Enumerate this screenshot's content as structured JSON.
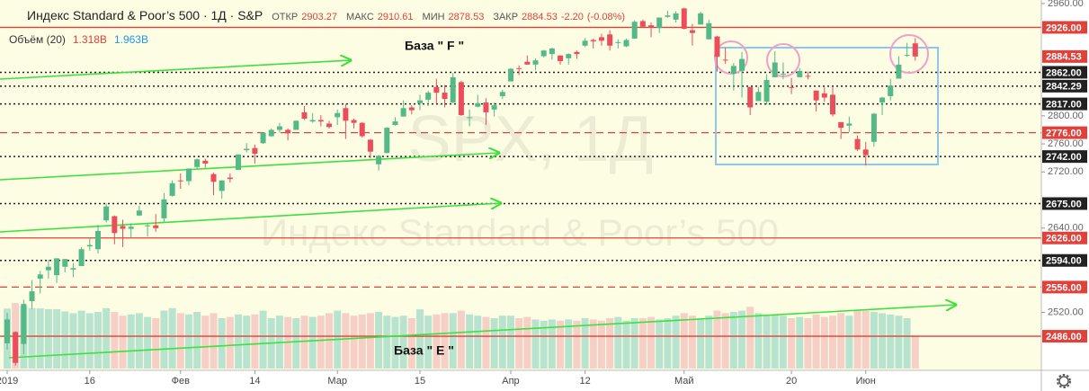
{
  "header": {
    "title": "Индекс Standard & Poor’s 500 · 1Д · S&P",
    "fields": [
      "ОТКР",
      "МАКС",
      "МИН",
      "ЗАКР"
    ],
    "change": {
      "value": -2.2,
      "label": "-2.20"
    },
    "change_pct": {
      "value": -0.08,
      "label": "(-0.08%)"
    }
  },
  "volume_legend": {
    "title": "Объём (20)",
    "values": [
      {
        "value": 1.318,
        "label": "1.318B"
      },
      {
        "value": 1.963,
        "label": "1.963B"
      }
    ]
  },
  "chart_data": {
    "type": "candlestick",
    "ylim": [
      2440,
      2965
    ],
    "yticks": [
      {
        "value": 2960,
        "label": "2960.00"
      },
      {
        "value": 2800,
        "label": "2800.00"
      },
      {
        "value": 2760,
        "label": "2760.00"
      },
      {
        "value": 2720,
        "label": "2720.00"
      },
      {
        "value": 2640,
        "label": "2640.00"
      },
      {
        "value": 2520,
        "label": "2520.00"
      }
    ],
    "xticks": [
      {
        "value": 0,
        "label": "2019"
      },
      {
        "value": 10,
        "label": "16"
      },
      {
        "value": 21,
        "label": "Фев"
      },
      {
        "value": 30,
        "label": "14"
      },
      {
        "value": 40,
        "label": "Мар"
      },
      {
        "value": 50,
        "label": "15"
      },
      {
        "value": 61,
        "label": "Апр"
      },
      {
        "value": 70,
        "label": "12"
      },
      {
        "value": 82,
        "label": "Май"
      },
      {
        "value": 95,
        "label": "20"
      },
      {
        "value": 104,
        "label": "Июн"
      }
    ],
    "grid": false,
    "up_color": "#53b987",
    "down_color": "#eb4d5c",
    "volume_up_color": "#7fcfc0",
    "volume_down_color": "#f0a9ae",
    "watermark": "SPX, 1Д",
    "watermark_subtitle": "Индекс Standard & Poor’s 500",
    "annotations": [
      "База \" F \"",
      "База \" E \""
    ],
    "levels": [
      {
        "value": 2926,
        "label": "2926.00",
        "style": "solid",
        "color": "#e0413a"
      },
      {
        "value": 2862,
        "label": "2862.00",
        "style": "dotted",
        "color": "#222222"
      },
      {
        "value": 2842.29,
        "label": "2842.29",
        "style": "dotted",
        "color": "#222222"
      },
      {
        "value": 2817,
        "label": "2817.00",
        "style": "dotted",
        "color": "#222222"
      },
      {
        "value": 2776,
        "label": "2776.00",
        "style": "dashed",
        "color": "#e0413a"
      },
      {
        "value": 2742,
        "label": "2742.00",
        "style": "dotted",
        "color": "#222222"
      },
      {
        "value": 2675,
        "label": "2675.00",
        "style": "dotted",
        "color": "#222222"
      },
      {
        "value": 2626,
        "label": "2626.00",
        "style": "solid",
        "color": "#e0413a"
      },
      {
        "value": 2594,
        "label": "2594.00",
        "style": "dotted",
        "color": "#222222"
      },
      {
        "value": 2556,
        "label": "2556.00",
        "style": "dashed",
        "color": "#e0413a"
      },
      {
        "value": 2486,
        "label": "2486.00",
        "style": "solid",
        "color": "#e0413a"
      }
    ],
    "last_price": {
      "value": 2884.53,
      "label": "2884.53",
      "color": "#e0413a"
    },
    "ohlc": [
      [
        2476,
        2519,
        2467,
        2510
      ],
      [
        2492,
        2493,
        2444,
        2448
      ],
      [
        2475,
        2538,
        2460,
        2532
      ],
      [
        2536,
        2566,
        2525,
        2550
      ],
      [
        2568,
        2579,
        2547,
        2574
      ],
      [
        2580,
        2595,
        2568,
        2585
      ],
      [
        2573,
        2597,
        2562,
        2597
      ],
      [
        2585,
        2596,
        2577,
        2596
      ],
      [
        2581,
        2590,
        2570,
        2583
      ],
      [
        2586,
        2613,
        2586,
        2610
      ],
      [
        2614,
        2625,
        2608,
        2616
      ],
      [
        2610,
        2645,
        2604,
        2636
      ],
      [
        2651,
        2675,
        2648,
        2671
      ],
      [
        2657,
        2658,
        2617,
        2633
      ],
      [
        2643,
        2652,
        2613,
        2639
      ],
      [
        2639,
        2647,
        2627,
        2642
      ],
      [
        2658,
        2672,
        2657,
        2665
      ],
      [
        2644,
        2647,
        2628,
        2644
      ],
      [
        2644,
        2660,
        2635,
        2640
      ],
      [
        2654,
        2690,
        2648,
        2681
      ],
      [
        2686,
        2708,
        2685,
        2704
      ],
      [
        2708,
        2718,
        2696,
        2707
      ],
      [
        2707,
        2725,
        2701,
        2725
      ],
      [
        2727,
        2739,
        2725,
        2738
      ],
      [
        2736,
        2739,
        2726,
        2732
      ],
      [
        2717,
        2719,
        2687,
        2706
      ],
      [
        2693,
        2708,
        2682,
        2708
      ],
      [
        2712,
        2718,
        2705,
        2710
      ],
      [
        2723,
        2745,
        2723,
        2745
      ],
      [
        2751,
        2761,
        2748,
        2753
      ],
      [
        2754,
        2759,
        2732,
        2746
      ],
      [
        2761,
        2776,
        2760,
        2776
      ],
      [
        2771,
        2782,
        2770,
        2780
      ],
      [
        2780,
        2790,
        2776,
        2785
      ],
      [
        2780,
        2782,
        2765,
        2775
      ],
      [
        2780,
        2793,
        2780,
        2793
      ],
      [
        2805,
        2814,
        2794,
        2796
      ],
      [
        2792,
        2804,
        2790,
        2794
      ],
      [
        2794,
        2801,
        2785,
        2792
      ],
      [
        2789,
        2793,
        2782,
        2784
      ],
      [
        2798,
        2809,
        2787,
        2804
      ],
      [
        2811,
        2817,
        2767,
        2793
      ],
      [
        2794,
        2796,
        2782,
        2790
      ],
      [
        2790,
        2791,
        2769,
        2771
      ],
      [
        2766,
        2767,
        2739,
        2749
      ],
      [
        2731,
        2744,
        2722,
        2743
      ],
      [
        2747,
        2784,
        2747,
        2783
      ],
      [
        2787,
        2798,
        2786,
        2792
      ],
      [
        2799,
        2822,
        2799,
        2811
      ],
      [
        2812,
        2815,
        2802,
        2808
      ],
      [
        2818,
        2830,
        2808,
        2822
      ],
      [
        2823,
        2836,
        2814,
        2833
      ],
      [
        2841,
        2853,
        2818,
        2833
      ],
      [
        2833,
        2844,
        2812,
        2824
      ],
      [
        2819,
        2861,
        2818,
        2855
      ],
      [
        2848,
        2850,
        2800,
        2801
      ],
      [
        2797,
        2809,
        2785,
        2798
      ],
      [
        2813,
        2830,
        2812,
        2818
      ],
      [
        2819,
        2825,
        2787,
        2805
      ],
      [
        2809,
        2819,
        2799,
        2815
      ],
      [
        2828,
        2837,
        2824,
        2834
      ],
      [
        2849,
        2868,
        2849,
        2867
      ],
      [
        2868,
        2872,
        2858,
        2867
      ],
      [
        2877,
        2886,
        2873,
        2873
      ],
      [
        2873,
        2882,
        2865,
        2879
      ],
      [
        2885,
        2894,
        2883,
        2893
      ],
      [
        2888,
        2897,
        2880,
        2896
      ],
      [
        2886,
        2886,
        2873,
        2878
      ],
      [
        2882,
        2889,
        2873,
        2888
      ],
      [
        2891,
        2893,
        2881,
        2888
      ],
      [
        2900,
        2911,
        2898,
        2907
      ],
      [
        2908,
        2910,
        2896,
        2906
      ],
      [
        2912,
        2917,
        2900,
        2907
      ],
      [
        2916,
        2922,
        2893,
        2900
      ],
      [
        2904,
        2909,
        2896,
        2905
      ],
      [
        2899,
        2910,
        2898,
        2908
      ],
      [
        2910,
        2936,
        2910,
        2934
      ],
      [
        2935,
        2937,
        2926,
        2927
      ],
      [
        2929,
        2933,
        2912,
        2926
      ],
      [
        2925,
        2940,
        2918,
        2940
      ],
      [
        2941,
        2950,
        2940,
        2943
      ],
      [
        2937,
        2949,
        2933,
        2946
      ],
      [
        2953,
        2954,
        2923,
        2924
      ],
      [
        2922,
        2931,
        2900,
        2918
      ],
      [
        2930,
        2948,
        2930,
        2946
      ],
      [
        2909,
        2937,
        2909,
        2932
      ],
      [
        2913,
        2914,
        2863,
        2884
      ],
      [
        2880,
        2897,
        2874,
        2879
      ],
      [
        2860,
        2875,
        2836,
        2871
      ],
      [
        2864,
        2891,
        2826,
        2881
      ],
      [
        2841,
        2841,
        2801,
        2812
      ],
      [
        2821,
        2841,
        2821,
        2834
      ],
      [
        2820,
        2859,
        2816,
        2851
      ],
      [
        2855,
        2892,
        2855,
        2876
      ],
      [
        2859,
        2876,
        2852,
        2860
      ],
      [
        2841,
        2854,
        2831,
        2840
      ],
      [
        2855,
        2868,
        2855,
        2864
      ],
      [
        2857,
        2863,
        2852,
        2856
      ],
      [
        2836,
        2836,
        2806,
        2822
      ],
      [
        2832,
        2841,
        2820,
        2826
      ],
      [
        2830,
        2841,
        2799,
        2802
      ],
      [
        2791,
        2791,
        2767,
        2783
      ],
      [
        2786,
        2799,
        2777,
        2789
      ],
      [
        2767,
        2772,
        2750,
        2752
      ],
      [
        2752,
        2763,
        2729,
        2744
      ],
      [
        2763,
        2804,
        2756,
        2803
      ],
      [
        2819,
        2827,
        2801,
        2826
      ],
      [
        2828,
        2853,
        2822,
        2843
      ],
      [
        2853,
        2885,
        2853,
        2873
      ],
      [
        2886,
        2904,
        2884,
        2886.73
      ],
      [
        2903.27,
        2910.61,
        2878.53,
        2884.53
      ]
    ],
    "volumes": [
      2.38,
      2.6,
      2.49,
      2.4,
      2.39,
      2.36,
      2.36,
      2.27,
      2.2,
      2.3,
      2.2,
      2.25,
      2.4,
      2.25,
      2.1,
      2.15,
      2.2,
      2.05,
      2.0,
      2.3,
      2.4,
      2.2,
      2.15,
      2.25,
      2.1,
      2.2,
      2.0,
      2.05,
      2.15,
      2.1,
      2.15,
      2.3,
      2.0,
      2.1,
      2.05,
      2.0,
      2.1,
      2.05,
      2.1,
      2.2,
      2.3,
      2.2,
      2.1,
      2.15,
      2.2,
      2.25,
      2.1,
      2.05,
      2.1,
      2.0,
      2.35,
      2.1,
      2.15,
      2.2,
      2.2,
      2.3,
      2.15,
      2.1,
      2.05,
      2.0,
      2.1,
      2.1,
      2.0,
      2.05,
      1.95,
      1.9,
      1.95,
      1.9,
      1.95,
      1.9,
      2.0,
      1.95,
      1.9,
      2.0,
      2.05,
      1.9,
      2.0,
      2.0,
      2.05,
      1.95,
      2.0,
      2.1,
      2.2,
      2.1,
      2.0,
      2.1,
      2.3,
      2.2,
      2.25,
      2.3,
      2.45,
      2.2,
      2.1,
      2.15,
      2.1,
      2.0,
      2.05,
      2.0,
      2.15,
      2.05,
      2.1,
      2.2,
      2.1,
      2.3,
      2.3,
      2.25,
      2.2,
      2.15,
      2.1,
      2.0,
      1.318
    ]
  }
}
